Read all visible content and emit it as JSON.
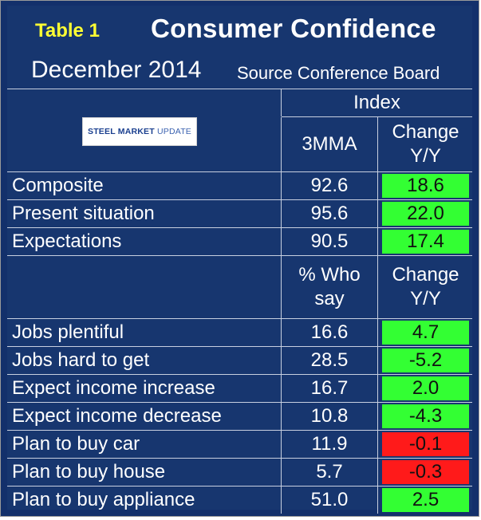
{
  "header": {
    "table_label": "Table 1",
    "title": "Consumer Confidence",
    "date": "December 2014",
    "source": "Source Conference Board"
  },
  "logo": {
    "bold_text": "STEEL MARKET",
    "light_text": "UPDATE"
  },
  "index_section": {
    "group_header": "Index",
    "col_value": "3MMA",
    "col_change_line1": "Change",
    "col_change_line2": "Y/Y",
    "rows": [
      {
        "label": "Composite",
        "value": "92.6",
        "change": "18.6",
        "status": "positive"
      },
      {
        "label": "Present situation",
        "value": "95.6",
        "change": "22.0",
        "status": "positive"
      },
      {
        "label": "Expectations",
        "value": "90.5",
        "change": "17.4",
        "status": "positive"
      }
    ]
  },
  "survey_section": {
    "col_value_line1": "% Who",
    "col_value_line2": "say",
    "col_change_line1": "Change",
    "col_change_line2": "Y/Y",
    "rows": [
      {
        "label": "Jobs plentiful",
        "value": "16.6",
        "change": "4.7",
        "status": "positive"
      },
      {
        "label": "Jobs hard to get",
        "value": "28.5",
        "change": "-5.2",
        "status": "positive"
      },
      {
        "label": "Expect income increase",
        "value": "16.7",
        "change": "2.0",
        "status": "positive"
      },
      {
        "label": "Expect income decrease",
        "value": "10.8",
        "change": "-4.3",
        "status": "positive"
      },
      {
        "label": "Plan to buy car",
        "value": "11.9",
        "change": "-0.1",
        "status": "negative"
      },
      {
        "label": "Plan to buy house",
        "value": "5.7",
        "change": "-0.3",
        "status": "negative"
      },
      {
        "label": "Plan to buy appliance",
        "value": "51.0",
        "change": "2.5",
        "status": "positive"
      }
    ]
  },
  "colors": {
    "background": "#17366f",
    "positive": "#33ff33",
    "negative": "#ff1a1a",
    "table_label": "#ffff33"
  }
}
